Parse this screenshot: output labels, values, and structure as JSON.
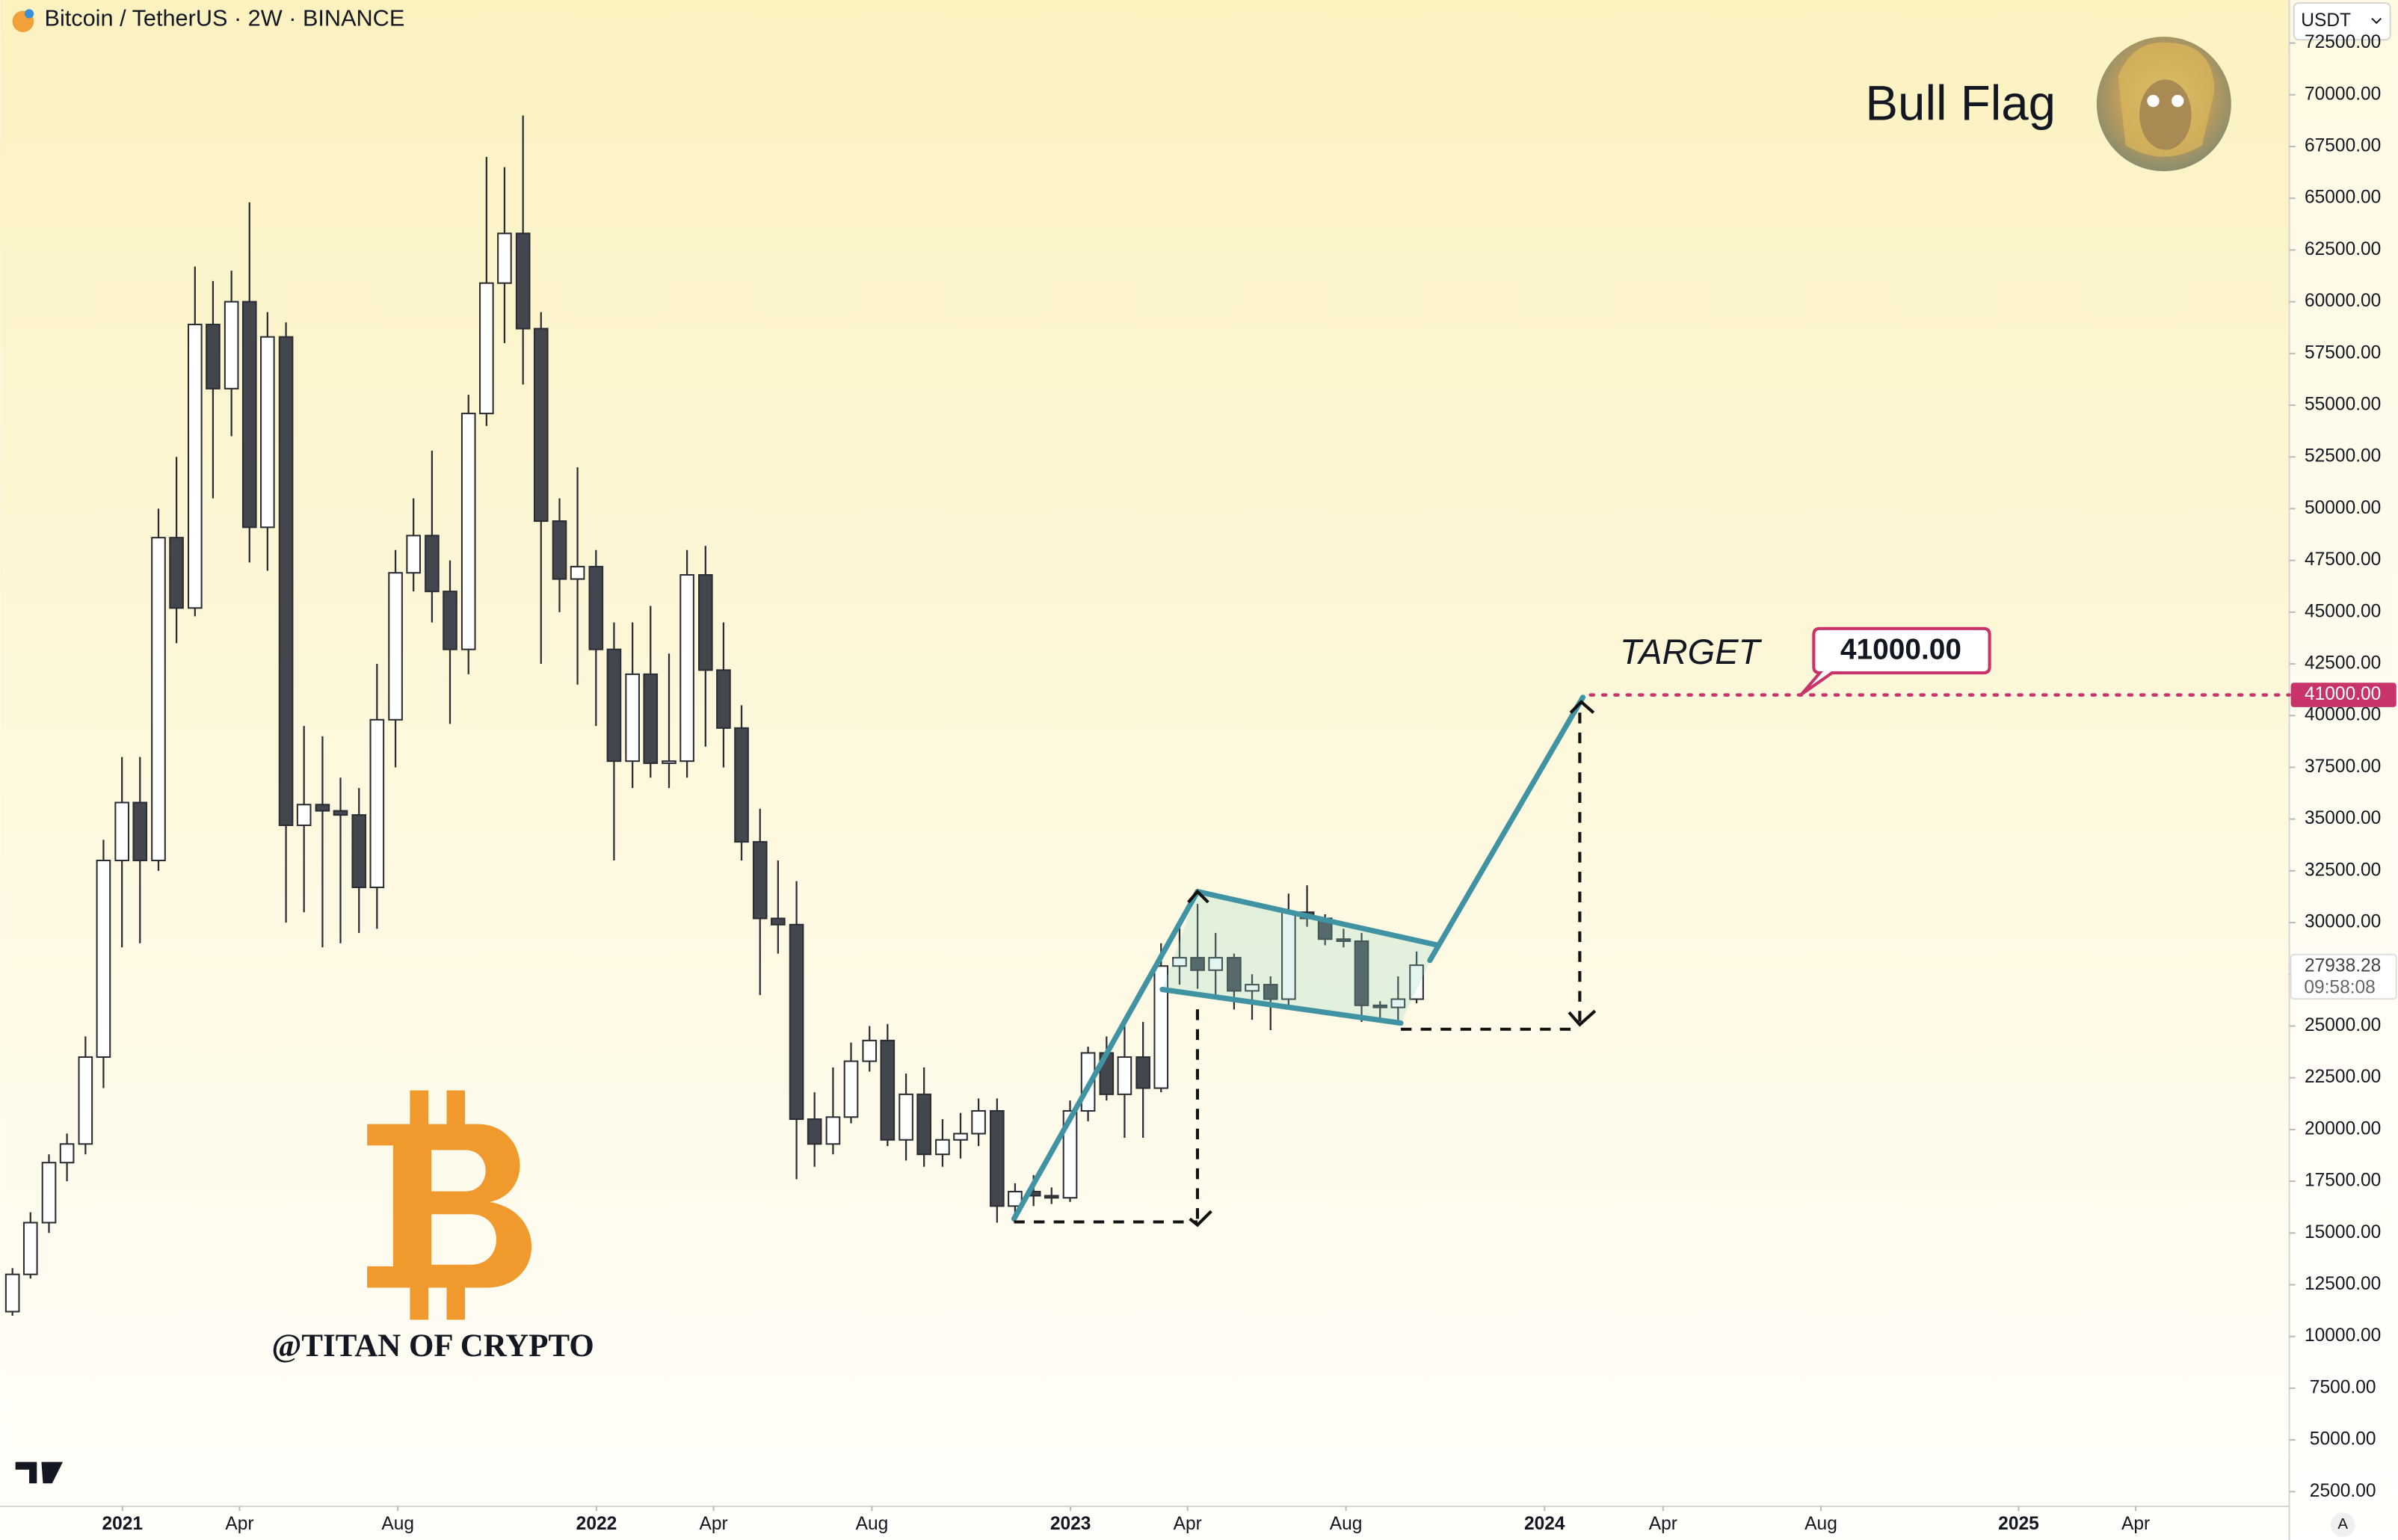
{
  "header": {
    "title": "Bitcoin / TetherUS · 2W · BINANCE",
    "currency": "USDT"
  },
  "annotation": {
    "title": "Bull Flag",
    "watermark": "@TITAN OF CRYPTO",
    "badge": "A"
  },
  "chart_data": {
    "type": "candlestick",
    "up_color": "#ffffff",
    "down_color": "#43464c",
    "outline_color": "#2a2d33",
    "grid": false,
    "x": [
      2020.768,
      2020.806,
      2020.845,
      2020.883,
      2020.922,
      2020.96,
      2020.999,
      2021.037,
      2021.076,
      2021.114,
      2021.153,
      2021.191,
      2021.23,
      2021.268,
      2021.306,
      2021.345,
      2021.383,
      2021.422,
      2021.46,
      2021.499,
      2021.537,
      2021.576,
      2021.614,
      2021.653,
      2021.691,
      2021.73,
      2021.768,
      2021.806,
      2021.845,
      2021.883,
      2021.922,
      2021.96,
      2021.999,
      2022.037,
      2022.076,
      2022.114,
      2022.153,
      2022.191,
      2022.23,
      2022.268,
      2022.306,
      2022.345,
      2022.383,
      2022.422,
      2022.46,
      2022.499,
      2022.537,
      2022.576,
      2022.614,
      2022.653,
      2022.691,
      2022.73,
      2022.768,
      2022.806,
      2022.845,
      2022.883,
      2022.922,
      2022.96,
      2022.999,
      2023.037,
      2023.076,
      2023.114,
      2023.153,
      2023.191,
      2023.23,
      2023.268,
      2023.306,
      2023.345,
      2023.383,
      2023.422,
      2023.46,
      2023.499,
      2023.537,
      2023.576,
      2023.614,
      2023.653,
      2023.691,
      2023.73
    ],
    "open": [
      11200,
      13000,
      15500,
      18400,
      19300,
      23500,
      33000,
      35800,
      33000,
      48600,
      45200,
      58900,
      55800,
      60000,
      49100,
      58300,
      34700,
      35700,
      35400,
      35200,
      31700,
      39800,
      46900,
      48700,
      46000,
      43200,
      54600,
      60900,
      63300,
      58700,
      49400,
      46600,
      47200,
      43200,
      37800,
      42000,
      37700,
      37800,
      46800,
      42200,
      39400,
      33900,
      30200,
      29900,
      20500,
      19300,
      20600,
      23300,
      24300,
      19500,
      21700,
      18800,
      19500,
      19800,
      20900,
      16300,
      17000,
      16800,
      16700,
      20900,
      23700,
      21700,
      23500,
      22000,
      27900,
      28300,
      27700,
      28300,
      26700,
      27000,
      26300,
      30500,
      30200,
      29200,
      29100,
      26000,
      25900,
      26300
    ],
    "high": [
      13300,
      16000,
      18800,
      19800,
      24500,
      34000,
      38000,
      38000,
      50000,
      52500,
      61700,
      61000,
      61500,
      64800,
      59500,
      59000,
      39500,
      39000,
      37000,
      36500,
      42500,
      48000,
      50500,
      52800,
      47500,
      55500,
      67000,
      66500,
      69000,
      59500,
      50500,
      52000,
      48000,
      44500,
      44500,
      45300,
      43000,
      48000,
      48200,
      44500,
      40500,
      35500,
      33000,
      32000,
      21800,
      23000,
      24200,
      25000,
      25100,
      22700,
      23000,
      20500,
      20800,
      21500,
      21500,
      17400,
      17800,
      17200,
      21400,
      24000,
      24500,
      25200,
      25200,
      29000,
      30000,
      30900,
      29500,
      28500,
      27500,
      27400,
      31400,
      31800,
      30400,
      29700,
      29500,
      26200,
      27400,
      28600
    ],
    "low": [
      11000,
      12800,
      15000,
      17500,
      18800,
      22000,
      28800,
      29000,
      32500,
      43500,
      44800,
      50500,
      53500,
      47400,
      47000,
      30000,
      30500,
      28800,
      29000,
      29500,
      29700,
      37500,
      46000,
      44500,
      39600,
      42000,
      54000,
      58000,
      56000,
      42500,
      45000,
      41500,
      39500,
      33000,
      36500,
      37000,
      36500,
      37000,
      38500,
      37500,
      33000,
      26500,
      28500,
      17600,
      18200,
      18800,
      20300,
      22800,
      19200,
      18500,
      18200,
      18200,
      18600,
      19200,
      15500,
      15800,
      16300,
      16400,
      16500,
      20400,
      21400,
      19600,
      19600,
      21800,
      27000,
      26800,
      26500,
      25800,
      25300,
      24800,
      25900,
      29800,
      28900,
      28800,
      25200,
      25300,
      25200,
      26100
    ],
    "close": [
      13000,
      15500,
      18400,
      19300,
      23500,
      33000,
      35800,
      33000,
      48600,
      45200,
      58900,
      55800,
      60000,
      49100,
      58300,
      34700,
      35700,
      35400,
      35200,
      31700,
      39800,
      46900,
      48700,
      46000,
      43200,
      54600,
      60900,
      63300,
      58700,
      49400,
      46600,
      47200,
      43200,
      37800,
      42000,
      37700,
      37800,
      46800,
      42200,
      39400,
      33900,
      30200,
      29900,
      20500,
      19300,
      20600,
      23300,
      24300,
      19500,
      21700,
      18800,
      19500,
      19800,
      20900,
      16300,
      17000,
      16800,
      16700,
      20900,
      23700,
      21700,
      23500,
      22000,
      27900,
      28300,
      27700,
      28300,
      26700,
      27000,
      26300,
      30500,
      30200,
      29200,
      29100,
      26000,
      25900,
      26300,
      27938.28
    ],
    "countdown": "09:58:08",
    "target": {
      "label": "TARGET",
      "value": 41000,
      "value_label": "41000.00"
    },
    "xlim": [
      2020.742,
      2025.571
    ],
    "xticks": [
      {
        "value": 2021,
        "label": "2021"
      },
      {
        "value": 2021.247,
        "label": "Apr"
      },
      {
        "value": 2021.581,
        "label": "Aug"
      },
      {
        "value": 2022,
        "label": "2022"
      },
      {
        "value": 2022.247,
        "label": "Apr"
      },
      {
        "value": 2022.581,
        "label": "Aug"
      },
      {
        "value": 2023,
        "label": "2023"
      },
      {
        "value": 2023.247,
        "label": "Apr"
      },
      {
        "value": 2023.581,
        "label": "Aug"
      },
      {
        "value": 2024,
        "label": "2024"
      },
      {
        "value": 2024.25,
        "label": "Apr"
      },
      {
        "value": 2024.583,
        "label": "Aug"
      },
      {
        "value": 2025,
        "label": "2025"
      },
      {
        "value": 2025.247,
        "label": "Apr"
      }
    ],
    "ylim": [
      1790,
      74580
    ],
    "yticks": [
      {
        "value": 2500,
        "label": "2500.00"
      },
      {
        "value": 5000,
        "label": "5000.00"
      },
      {
        "value": 7500,
        "label": "7500.00"
      },
      {
        "value": 10000,
        "label": "10000.00"
      },
      {
        "value": 12500,
        "label": "12500.00"
      },
      {
        "value": 15000,
        "label": "15000.00"
      },
      {
        "value": 17500,
        "label": "17500.00"
      },
      {
        "value": 20000,
        "label": "20000.00"
      },
      {
        "value": 22500,
        "label": "22500.00"
      },
      {
        "value": 25000,
        "label": "25000.00"
      },
      {
        "value": 27500,
        "label": "27500.00"
      },
      {
        "value": 30000,
        "label": "30000.00"
      },
      {
        "value": 32500,
        "label": "32500.00"
      },
      {
        "value": 35000,
        "label": "35000.00"
      },
      {
        "value": 37500,
        "label": "37500.00"
      },
      {
        "value": 40000,
        "label": "40000.00"
      },
      {
        "value": 42500,
        "label": "42500.00"
      },
      {
        "value": 45000,
        "label": "45000.00"
      },
      {
        "value": 47500,
        "label": "47500.00"
      },
      {
        "value": 50000,
        "label": "50000.00"
      },
      {
        "value": 52500,
        "label": "52500.00"
      },
      {
        "value": 55000,
        "label": "55000.00"
      },
      {
        "value": 57500,
        "label": "57500.00"
      },
      {
        "value": 60000,
        "label": "60000.00"
      },
      {
        "value": 62500,
        "label": "62500.00"
      },
      {
        "value": 65000,
        "label": "65000.00"
      },
      {
        "value": 67500,
        "label": "67500.00"
      },
      {
        "value": 70000,
        "label": "70000.00"
      },
      {
        "value": 72500,
        "label": "72500.00"
      }
    ]
  }
}
